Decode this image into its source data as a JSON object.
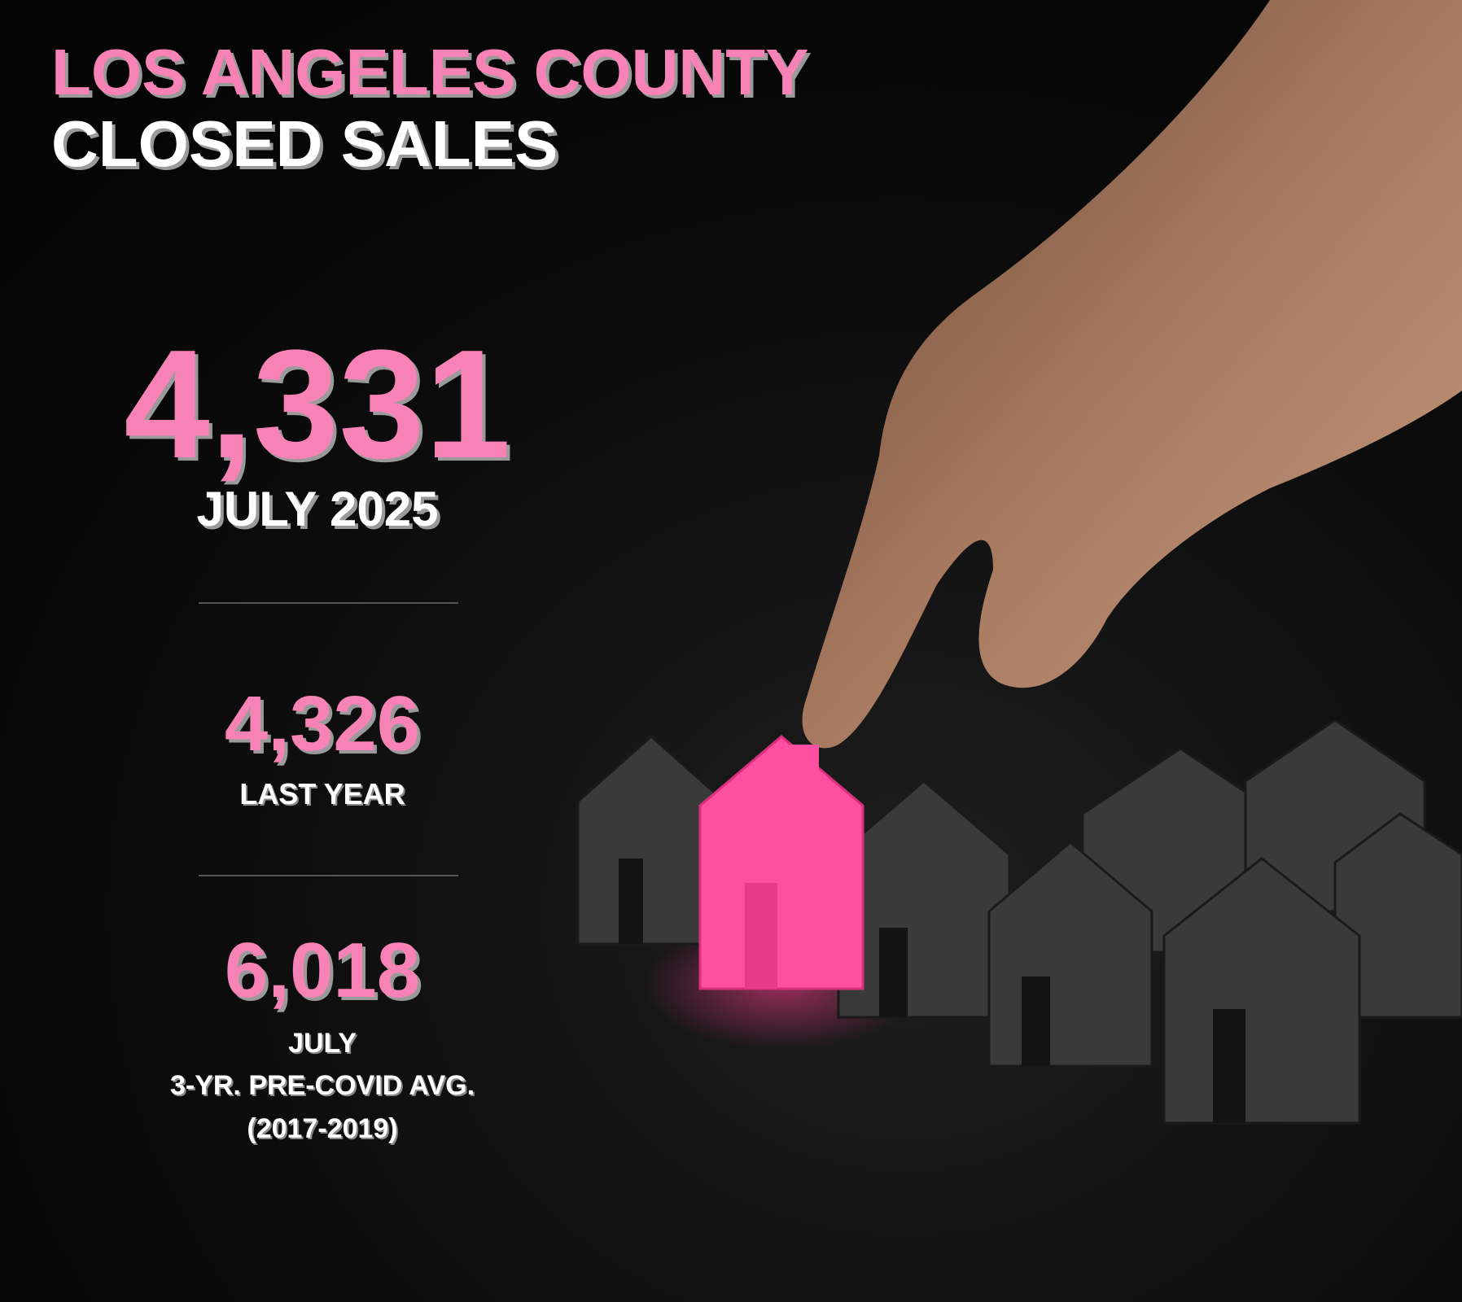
{
  "header": {
    "title_line1": "LOS ANGELES COUNTY",
    "title_line2": "CLOSED SALES"
  },
  "stats": [
    {
      "value": "4,331",
      "label_lines": [
        "JULY 2025"
      ]
    },
    {
      "value": "4,326",
      "label_lines": [
        "LAST YEAR"
      ]
    },
    {
      "value": "6,018",
      "label_lines": [
        "JULY",
        "3-YR. PRE-COVID AVG.",
        "(2017-2019)"
      ]
    }
  ]
}
